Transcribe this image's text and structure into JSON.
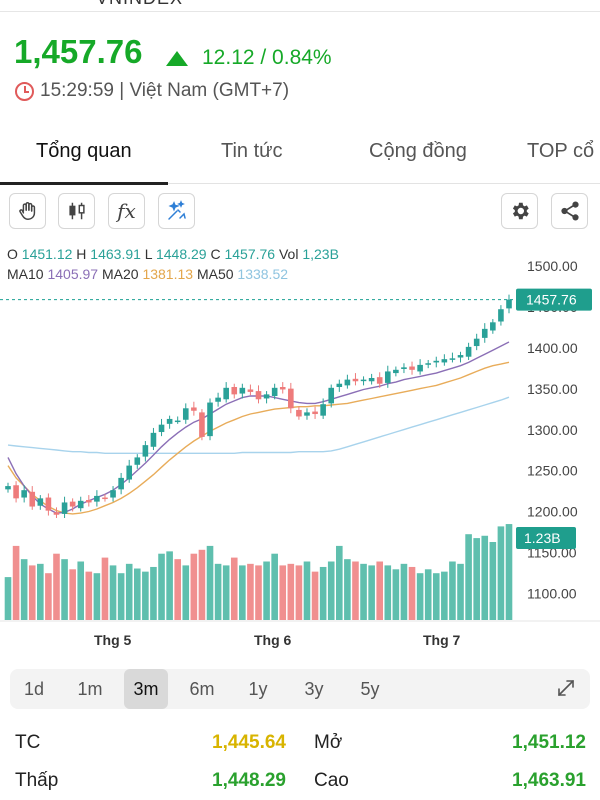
{
  "header": {
    "top_strip_text": "VNINDEX",
    "price": "1,457.76",
    "change": "12.12 / 0.84%",
    "time": "15:29:59 | Việt Nam (GMT+7)",
    "colors": {
      "up": "#16a928",
      "down": "#ee7b7b",
      "ref": "#d8b400"
    }
  },
  "tabs": [
    {
      "label": "Tổng quan",
      "active": true
    },
    {
      "label": "Tin tức",
      "active": false
    },
    {
      "label": "Cộng đồng",
      "active": false
    },
    {
      "label": "TOP cổ",
      "active": false
    }
  ],
  "toolbar": {
    "left_icons": [
      "hand-icon",
      "candlestick-icon",
      "function-icon",
      "magic-icon"
    ],
    "right_icons": [
      "gear-icon",
      "share-icon"
    ],
    "fx_label": "fx"
  },
  "legend": {
    "o_label": "O",
    "o": "1451.12",
    "h_label": "H",
    "h": "1463.91",
    "l_label": "L",
    "l": "1448.29",
    "c_label": "C",
    "c": "1457.76",
    "vol_label": "Vol",
    "vol": "1,23B",
    "ma10_label": "MA10",
    "ma10": "1405.97",
    "ma20_label": "MA20",
    "ma20": "1381.13",
    "ma50_label": "MA50",
    "ma50": "1338.52"
  },
  "chart_data": {
    "type": "candlestick",
    "y_ticks": [
      "1500.00",
      "1450.00",
      "1400.00",
      "1350.00",
      "1300.00",
      "1250.00",
      "1200.00",
      "1150.00",
      "1100.00"
    ],
    "ylim": [
      1100,
      1500
    ],
    "x_labels": [
      "Thg 5",
      "Thg 6",
      "Thg 7"
    ],
    "last_price_label": "1457.76",
    "last_volume_label": "1.23B",
    "closes": [
      1230,
      1215,
      1225,
      1205,
      1215,
      1200,
      1195,
      1210,
      1205,
      1212,
      1210,
      1218,
      1215,
      1225,
      1240,
      1255,
      1265,
      1280,
      1295,
      1305,
      1312,
      1310,
      1325,
      1322,
      1290,
      1332,
      1338,
      1350,
      1342,
      1350,
      1345,
      1336,
      1342,
      1350,
      1348,
      1325,
      1315,
      1320,
      1318,
      1330,
      1350,
      1355,
      1360,
      1358,
      1360,
      1362,
      1355,
      1370,
      1372,
      1375,
      1372,
      1378,
      1380,
      1383,
      1385,
      1386,
      1390,
      1400,
      1410,
      1422,
      1430,
      1446,
      1457.76
    ],
    "ma10": [
      1265,
      1245,
      1230,
      1218,
      1208,
      1202,
      1197,
      1198,
      1202,
      1208,
      1212,
      1216,
      1220,
      1225,
      1232,
      1240,
      1249,
      1258,
      1268,
      1278,
      1287,
      1295,
      1302,
      1308,
      1312,
      1318,
      1324,
      1330,
      1334,
      1338,
      1340,
      1340,
      1340,
      1338,
      1336,
      1334,
      1332,
      1331,
      1331,
      1333,
      1336,
      1339,
      1342,
      1345,
      1348,
      1350,
      1352,
      1355,
      1357,
      1360,
      1362,
      1364,
      1366,
      1368,
      1371,
      1374,
      1377,
      1381,
      1386,
      1391,
      1396,
      1401,
      1405.97
    ],
    "ma20": [
      1255,
      1240,
      1230,
      1220,
      1212,
      1205,
      1200,
      1197,
      1196,
      1197,
      1199,
      1202,
      1206,
      1210,
      1215,
      1221,
      1228,
      1236,
      1244,
      1253,
      1262,
      1270,
      1278,
      1285,
      1291,
      1297,
      1302,
      1307,
      1311,
      1315,
      1318,
      1320,
      1322,
      1324,
      1325,
      1326,
      1327,
      1327,
      1328,
      1328,
      1329,
      1330,
      1331,
      1333,
      1335,
      1337,
      1339,
      1341,
      1343,
      1345,
      1347,
      1349,
      1351,
      1353,
      1356,
      1359,
      1362,
      1366,
      1370,
      1374,
      1377,
      1379,
      1381.13
    ],
    "ma50": [
      1280,
      1279,
      1278,
      1277,
      1276,
      1275,
      1274,
      1273,
      1272,
      1272,
      1271,
      1271,
      1270,
      1270,
      1270,
      1270,
      1270,
      1270,
      1270,
      1270,
      1270,
      1270,
      1270,
      1270,
      1270,
      1270,
      1270,
      1270,
      1270,
      1271,
      1271,
      1271,
      1271,
      1271,
      1271,
      1271,
      1272,
      1272,
      1272,
      1272,
      1273,
      1275,
      1278,
      1281,
      1284,
      1287,
      1290,
      1293,
      1296,
      1299,
      1302,
      1305,
      1308,
      1311,
      1314,
      1317,
      1320,
      1323,
      1326,
      1329,
      1332,
      1335,
      1338.52
    ],
    "volume_billion": [
      0.55,
      0.95,
      0.78,
      0.7,
      0.72,
      0.6,
      0.85,
      0.78,
      0.65,
      0.75,
      0.62,
      0.6,
      0.8,
      0.7,
      0.6,
      0.72,
      0.66,
      0.62,
      0.68,
      0.85,
      0.88,
      0.78,
      0.7,
      0.85,
      0.9,
      0.95,
      0.72,
      0.7,
      0.8,
      0.7,
      0.72,
      0.7,
      0.75,
      0.85,
      0.7,
      0.72,
      0.7,
      0.75,
      0.62,
      0.68,
      0.75,
      0.95,
      0.78,
      0.75,
      0.72,
      0.7,
      0.75,
      0.7,
      0.65,
      0.72,
      0.68,
      0.6,
      0.65,
      0.6,
      0.62,
      0.75,
      0.72,
      1.1,
      1.05,
      1.08,
      1.0,
      1.2,
      1.23
    ]
  },
  "timeframes": [
    {
      "label": "1d",
      "active": false
    },
    {
      "label": "1m",
      "active": false
    },
    {
      "label": "3m",
      "active": true
    },
    {
      "label": "6m",
      "active": false
    },
    {
      "label": "1y",
      "active": false
    },
    {
      "label": "3y",
      "active": false
    },
    {
      "label": "5y",
      "active": false
    }
  ],
  "stats": {
    "tc_label": "TC",
    "tc": "1,445.64",
    "open_label": "Mở",
    "open": "1,451.12",
    "low_label": "Thấp",
    "low": "1,448.29",
    "high_label": "Cao",
    "high": "1,463.91"
  }
}
